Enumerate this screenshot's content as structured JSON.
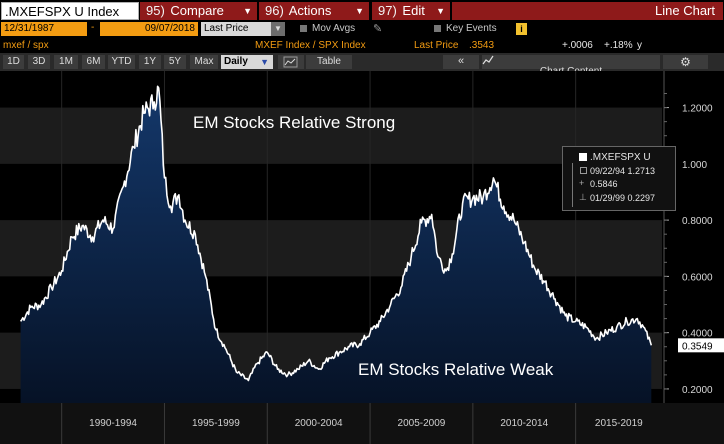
{
  "toolbar": {
    "ticker": ".MXEFSPX U Index",
    "compare_num": "95)",
    "compare_label": "Compare",
    "actions_num": "96)",
    "actions_label": "Actions",
    "edit_num": "97)",
    "edit_label": "Edit",
    "chart_type": "Line Chart"
  },
  "options": {
    "start_date": "12/31/1987",
    "end_date": "09/07/2018",
    "price_field": "Last Price",
    "mov_avgs": "Mov Avgs",
    "key_events": "Key Events",
    "info_icon": "i"
  },
  "security": {
    "short_name": "mxef / spx",
    "pair": "MXEF Index / SPX Index",
    "last_price_label": "Last Price",
    "last_price": ".3543",
    "change": "+.0006",
    "change_pct": "+.18%",
    "unit": "y"
  },
  "periods": {
    "buttons": [
      "1D",
      "3D",
      "1M",
      "6M",
      "YTD",
      "1Y",
      "5Y",
      "Max"
    ],
    "frequency": "Daily",
    "table_label": "Table",
    "nav_back": "«",
    "chart_content": "Chart Content",
    "settings_icon": "gear-icon"
  },
  "legend": {
    "series": ".MXEFSPX U",
    "high_row": "09/22/94 1.2713",
    "last_row": "0.5846",
    "low_row": "01/29/99 0.2297"
  },
  "annotations": {
    "strong": "EM Stocks Relative Strong",
    "weak": "EM Stocks Relative Weak"
  },
  "chart_data": {
    "type": "area",
    "title": "",
    "xlabel": "",
    "ylabel": "",
    "ylim": [
      0.15,
      1.33
    ],
    "yticks": [
      0.2,
      0.4,
      0.6,
      0.8,
      1.0,
      1.2
    ],
    "ytick_labels": [
      "0.2000",
      "0.4000",
      "0.6000",
      "0.8000",
      "1.000",
      "1.2000"
    ],
    "x_categories": [
      "1990-1994",
      "1995-1999",
      "2000-2004",
      "2005-2009",
      "2010-2014",
      "2015-2019"
    ],
    "last_value_label": "0.3549",
    "grid": true,
    "colors": {
      "line": "#ffffff",
      "fill_top": "#14386b",
      "fill_bottom": "#061226",
      "band": "#1c1c1c",
      "accent": "#8e1a1a"
    },
    "series": [
      {
        "x": [
          1988.0,
          1988.5,
          1989.0,
          1989.5,
          1990.0,
          1990.5,
          1991.0,
          1991.5,
          1992.0,
          1992.5,
          1993.0,
          1993.5,
          1994.0,
          1994.5,
          1994.72,
          1995.0,
          1995.3,
          1995.7,
          1996.0,
          1996.5,
          1997.0,
          1997.5,
          1998.0,
          1998.5,
          1999.08,
          1999.5,
          2000.0,
          2000.5,
          2001.0,
          2001.5,
          2002.0,
          2002.5,
          2003.0,
          2003.5,
          2004.0,
          2004.5,
          2005.0,
          2005.5,
          2006.0,
          2006.5,
          2007.0,
          2007.5,
          2008.0,
          2008.3,
          2008.7,
          2009.0,
          2009.5,
          2010.0,
          2010.5,
          2011.0,
          2011.5,
          2012.0,
          2012.5,
          2013.0,
          2013.5,
          2014.0,
          2014.5,
          2015.0,
          2015.5,
          2016.0,
          2016.5,
          2017.0,
          2017.5,
          2018.0,
          2018.3,
          2018.68
        ],
        "y": [
          0.44,
          0.49,
          0.5,
          0.56,
          0.62,
          0.74,
          0.78,
          0.74,
          0.8,
          0.77,
          0.92,
          1.06,
          1.18,
          1.22,
          1.27,
          0.95,
          0.85,
          0.89,
          0.8,
          0.75,
          0.6,
          0.41,
          0.34,
          0.26,
          0.23,
          0.29,
          0.33,
          0.27,
          0.25,
          0.27,
          0.3,
          0.27,
          0.31,
          0.33,
          0.35,
          0.36,
          0.4,
          0.44,
          0.5,
          0.56,
          0.67,
          0.79,
          0.82,
          0.67,
          0.62,
          0.68,
          0.86,
          0.88,
          0.88,
          0.95,
          0.85,
          0.8,
          0.72,
          0.63,
          0.58,
          0.52,
          0.46,
          0.44,
          0.42,
          0.38,
          0.4,
          0.42,
          0.44,
          0.45,
          0.42,
          0.355
        ]
      }
    ]
  }
}
